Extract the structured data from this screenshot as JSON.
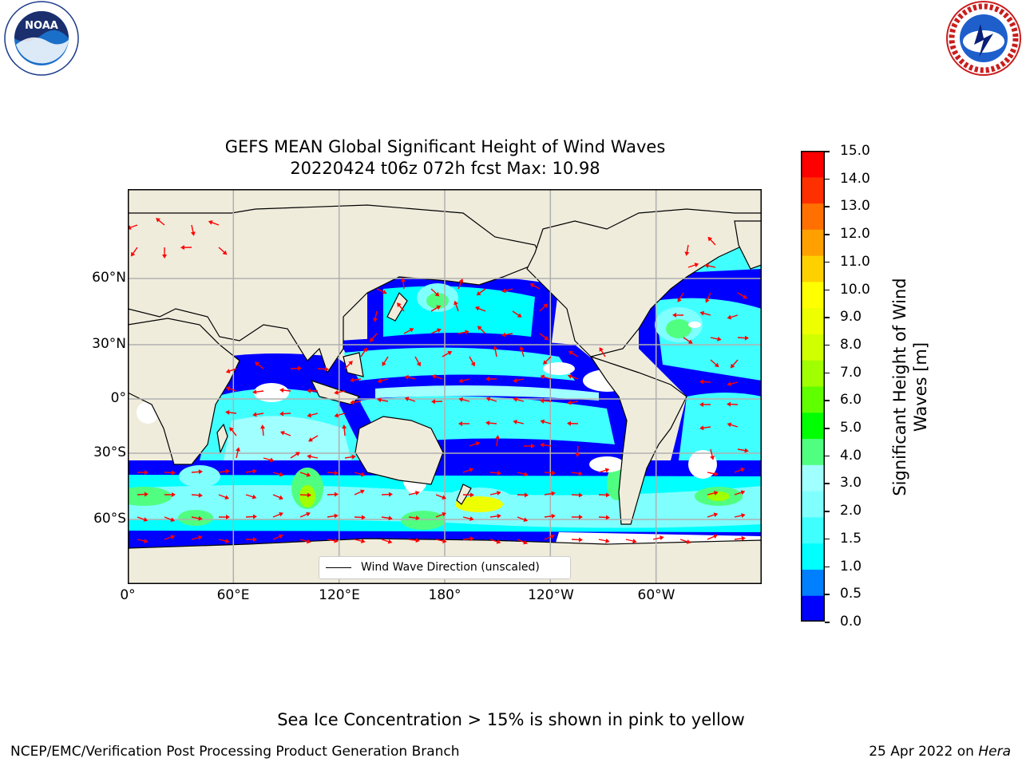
{
  "title_line1": "GEFS MEAN Global Significant Height of Wind Waves",
  "title_line2": "20220424 t06z 072h fcst   Max: 10.98",
  "logos": {
    "left": "noaa-logo",
    "right": "nws-logo"
  },
  "map": {
    "projection": "equirectangular",
    "lon_ticks": [
      "0°",
      "60°E",
      "120°E",
      "180°",
      "120°W",
      "60°W"
    ],
    "lat_ticks": [
      "60°N",
      "30°N",
      "0°",
      "30°S",
      "60°S"
    ],
    "land_color": "#efecdc",
    "legend": "Wind Wave Direction (unscaled)",
    "arrow_color": "#ff0000"
  },
  "colorbar": {
    "label": "Significant Height of Wind Waves [m]",
    "ticks": [
      "15.0",
      "14.0",
      "13.0",
      "12.0",
      "11.0",
      "10.0",
      "9.0",
      "8.0",
      "7.0",
      "6.0",
      "5.0",
      "4.0",
      "3.0",
      "2.0",
      "1.5",
      "1.0",
      "0.5",
      "0.0"
    ],
    "colors": [
      "#0000ff",
      "#0080ff",
      "#00ffff",
      "#40ffff",
      "#80ffff",
      "#a0ffff",
      "#50ff80",
      "#00ff00",
      "#60ff00",
      "#a0ff00",
      "#d0ff00",
      "#eeff00",
      "#ffff00",
      "#ffd000",
      "#ffa000",
      "#ff7000",
      "#ff3000",
      "#ff0000"
    ]
  },
  "note": "Sea Ice Concentration > 15% is shown in pink to yellow",
  "footer_left": "NCEP/EMC/Verification Post Processing Product Generation Branch",
  "footer_right_date": "25 Apr 2022 on",
  "footer_right_host": "Hera"
}
